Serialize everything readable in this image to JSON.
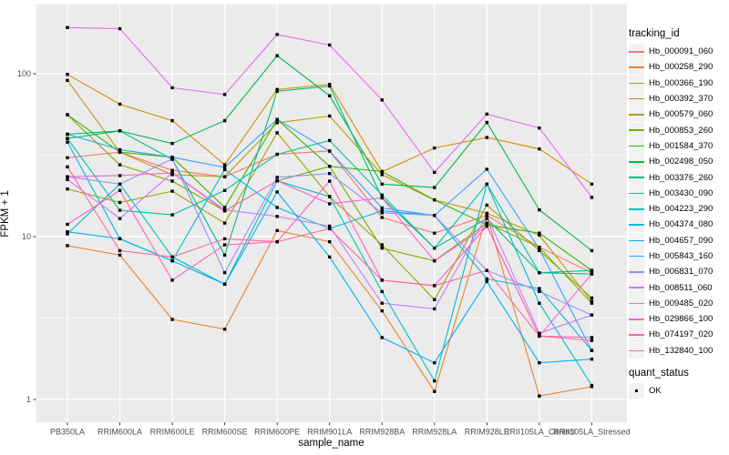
{
  "figure": {
    "xlabel": "sample_name",
    "ylabel": "FPKM + 1",
    "legend_title": "tracking_id",
    "quant_legend_title": "quant_status",
    "quant_legend_label": "OK"
  },
  "colors": {
    "panel_bg": "#EBEBEB",
    "grid": "#FFFFFF",
    "marker": "#000000",
    "tick_mark": "#333333",
    "tick_label": "#4D4D4D",
    "legend_key_bg": "#F2F2F2"
  },
  "chart_data": {
    "type": "line",
    "title": "",
    "xlabel": "sample_name",
    "ylabel": "FPKM + 1",
    "x_type": "categorical",
    "yscale": "log10",
    "grid": true,
    "legend_position": "right",
    "legend_title": "tracking_id",
    "marker": "black-square",
    "y_ticks": [
      1,
      10,
      100
    ],
    "y_minor_ticks": [
      3.162,
      31.62
    ],
    "ylim": [
      0.72,
      267
    ],
    "categories": [
      "PB350LA",
      "RRIM600LA",
      "RRIM600LE",
      "RRIM600SE",
      "RRIM600PE",
      "RRIM901LA",
      "RRIM928BA",
      "RRIM928LA",
      "RRIM928LE",
      "RRII105LA_Control",
      "RRII105LA_Stressed"
    ],
    "series": [
      {
        "name": "Hb_000091_060",
        "color": "#F8766D",
        "values": [
          30.5,
          33,
          25.5,
          23.3,
          32,
          33.5,
          13.1,
          10.5,
          13.5,
          8.6,
          6.0
        ]
      },
      {
        "name": "Hb_000258_290",
        "color": "#EA8331",
        "values": [
          8.8,
          7.7,
          3.1,
          2.7,
          10.9,
          9.3,
          3.5,
          1.12,
          13.5,
          1.05,
          1.2
        ]
      },
      {
        "name": "Hb_000366_190",
        "color": "#D89000",
        "values": [
          99,
          65,
          51.5,
          27.6,
          80,
          86,
          25,
          35,
          40.6,
          34.5,
          21
        ]
      },
      {
        "name": "Hb_000392_370",
        "color": "#C09B00",
        "values": [
          91,
          33,
          24,
          23.3,
          50,
          55,
          24,
          16.8,
          13.9,
          10.2,
          4.0
        ]
      },
      {
        "name": "Hb_000579_060",
        "color": "#A3A500",
        "values": [
          19.6,
          16.2,
          19,
          12.1,
          43.4,
          17.6,
          8.9,
          4.1,
          15.6,
          8.2,
          4.2
        ]
      },
      {
        "name": "Hb_000853_260",
        "color": "#7CAE00",
        "values": [
          56,
          27.6,
          21.9,
          14.4,
          22,
          27,
          8.5,
          7.1,
          12.1,
          8.6,
          3.9
        ]
      },
      {
        "name": "Hb_001584_370",
        "color": "#39B600",
        "values": [
          56,
          33,
          30.7,
          15.1,
          52.4,
          27,
          25.1,
          16.8,
          11.8,
          10.5,
          6.2
        ]
      },
      {
        "name": "Hb_002498_050",
        "color": "#00BB4E",
        "values": [
          42.5,
          44.6,
          37.3,
          51.5,
          129,
          73.2,
          21,
          20,
          50.2,
          14.6,
          8.2
        ]
      },
      {
        "name": "Hb_003376_260",
        "color": "#00BF7D",
        "values": [
          40,
          44.6,
          29.8,
          7.7,
          78,
          84,
          17.3,
          8.5,
          12.9,
          6.0,
          5.9
        ]
      },
      {
        "name": "Hb_003430_090",
        "color": "#00C1A3",
        "values": [
          40,
          14.5,
          13.6,
          19.2,
          32,
          38.9,
          18,
          8.5,
          21,
          6.0,
          6.2
        ]
      },
      {
        "name": "Hb_004223_290",
        "color": "#00BFC4",
        "values": [
          10.4,
          21,
          7.5,
          5.1,
          22,
          17.6,
          4.6,
          1.3,
          21,
          3.9,
          1.22
        ]
      },
      {
        "name": "Hb_004374_080",
        "color": "#00BAE0",
        "values": [
          38,
          9.7,
          7.1,
          25.8,
          15.1,
          11.2,
          14.4,
          13.5,
          5.5,
          4.8,
          2.0
        ]
      },
      {
        "name": "Hb_004657_090",
        "color": "#00B0F6",
        "values": [
          10.7,
          9.7,
          7.1,
          5.1,
          18.8,
          7.5,
          2.4,
          1.68,
          5.3,
          1.68,
          1.77
        ]
      },
      {
        "name": "Hb_005843_160",
        "color": "#35A2FF",
        "values": [
          42.5,
          34.2,
          30.7,
          26.6,
          52.4,
          33.5,
          15.0,
          13.5,
          25.9,
          8.4,
          2.0
        ]
      },
      {
        "name": "Hb_006831_070",
        "color": "#9590FF",
        "values": [
          23.3,
          21,
          30,
          6.0,
          23.1,
          24.4,
          14,
          13.5,
          6.2,
          4.6,
          3.3
        ]
      },
      {
        "name": "Hb_008511_060",
        "color": "#C77CFF",
        "values": [
          22.4,
          12.9,
          24.6,
          14.6,
          13.3,
          11.6,
          3.9,
          3.6,
          13.5,
          2.55,
          3.3
        ]
      },
      {
        "name": "Hb_009485_020",
        "color": "#E76BF3",
        "values": [
          192,
          189,
          82,
          74.5,
          174,
          150,
          69,
          24.8,
          56.5,
          46.4,
          17.4
        ]
      },
      {
        "name": "Hb_029866_100",
        "color": "#FA62DB",
        "values": [
          23.3,
          23.7,
          24.6,
          14.4,
          22,
          15.9,
          17.3,
          7.1,
          11.6,
          2.45,
          5.9
        ]
      },
      {
        "name": "Hb_074197_020",
        "color": "#FF62BC",
        "values": [
          11.9,
          19.2,
          5.4,
          8.9,
          9.3,
          21.9,
          5.4,
          5.0,
          11.6,
          2.45,
          2.4
        ]
      },
      {
        "name": "Hb_132840_100",
        "color": "#FF6A98",
        "values": [
          26.8,
          8.2,
          7.5,
          9.7,
          9.3,
          11.2,
          5.4,
          5.0,
          6.2,
          2.45,
          2.3
        ]
      }
    ],
    "quant_status": {
      "title": "quant_status",
      "labels": [
        "OK"
      ]
    }
  }
}
